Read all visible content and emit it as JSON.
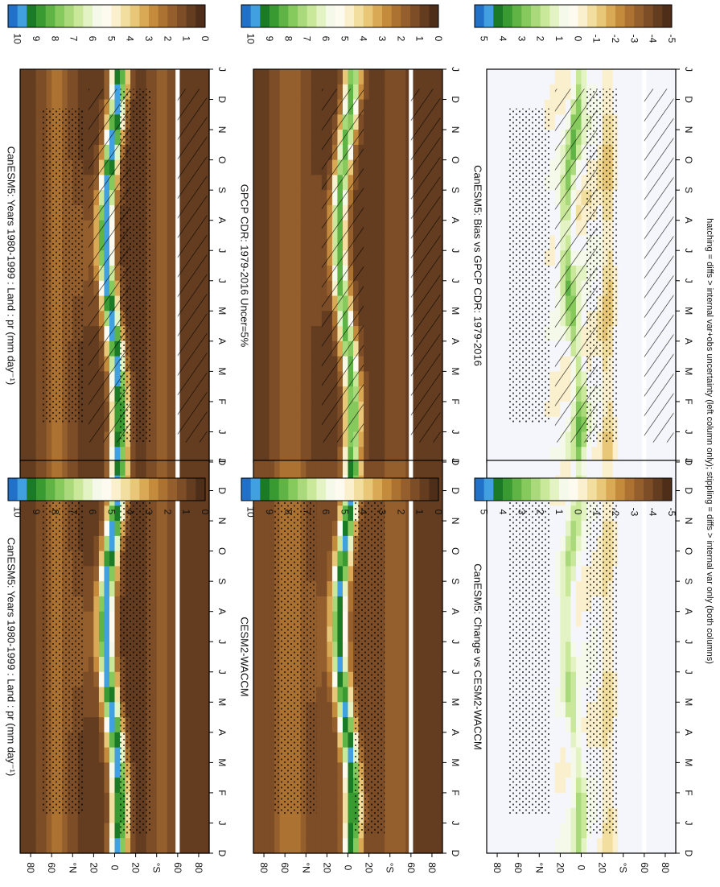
{
  "footnote": "hatching = diffs > internal var+obs uncertainty (left column only); stippling = diffs > internal var only (both columns)",
  "month_labels": [
    "D",
    "J",
    "F",
    "M",
    "A",
    "M",
    "J",
    "J",
    "A",
    "S",
    "O",
    "N",
    "D",
    "J"
  ],
  "lat_labels": [
    "80",
    "60",
    "°N",
    "20",
    "0",
    "20",
    "°S",
    "60",
    "80"
  ],
  "colorbars": {
    "abs": {
      "labels": [
        "10",
        "9",
        "8",
        "7",
        "6",
        "5",
        "4",
        "3",
        "2",
        "1",
        "0"
      ],
      "colors": [
        "#2171c8",
        "#41a0e0",
        "#1b7a25",
        "#3a9a32",
        "#60b445",
        "#86c95c",
        "#a9d97a",
        "#c9e89a",
        "#e4f3c3",
        "#f4f9ea",
        "#fdfaf0",
        "#fbf0cd",
        "#f2dfa0",
        "#e8c878",
        "#d9a955",
        "#c48b3d",
        "#ac7232",
        "#945f2c",
        "#7c4d26",
        "#643d20",
        "#4e2e18"
      ]
    },
    "diff": {
      "labels": [
        "5",
        "4",
        "3",
        "2",
        "1",
        "0",
        "-1",
        "-2",
        "-3",
        "-4",
        "-5"
      ],
      "colors": [
        "#2171c8",
        "#41a0e0",
        "#1b7a25",
        "#3a9a32",
        "#60b445",
        "#86c95c",
        "#a9d97a",
        "#c9e89a",
        "#e4f3c3",
        "#f4f9ea",
        "#fdfaf0",
        "#fbf0cd",
        "#f2dfa0",
        "#e8c878",
        "#d9a955",
        "#c48b3d",
        "#ac7232",
        "#945f2c",
        "#7c4d26",
        "#643d20",
        "#4e2e18"
      ]
    }
  },
  "chart_data": [
    {
      "type": "heatmap",
      "title": "CanESM5: Years 1980-1999 : Land : pr (mm day⁻¹)",
      "x": [
        "D",
        "J",
        "F",
        "M",
        "A",
        "M",
        "J",
        "J",
        "A",
        "S",
        "O",
        "N",
        "D",
        "J"
      ],
      "ylabels": [
        "80",
        "60",
        "°N",
        "20",
        "0",
        "20",
        "°S",
        "60",
        "80"
      ],
      "ylim": [
        -90,
        90
      ],
      "color_range": [
        0,
        10
      ],
      "colorbar": "abs",
      "hatching": true,
      "stippling": true
    },
    {
      "type": "heatmap",
      "title": "CanESM5: Years 1980-1999 : Land : pr (mm day⁻¹)",
      "x": [
        "D",
        "J",
        "F",
        "M",
        "A",
        "M",
        "J",
        "J",
        "A",
        "S",
        "O",
        "N",
        "D",
        "J"
      ],
      "ylabels": [
        "80",
        "60",
        "°N",
        "20",
        "0",
        "20",
        "°S",
        "60",
        "80"
      ],
      "ylim": [
        -90,
        90
      ],
      "color_range": [
        0,
        10
      ],
      "colorbar": "abs",
      "hatching": false,
      "stippling": true
    },
    {
      "type": "heatmap",
      "title": "GPCP CDR: 1979-2016 Uncer=5%",
      "x": [
        "D",
        "J",
        "F",
        "M",
        "A",
        "M",
        "J",
        "J",
        "A",
        "S",
        "O",
        "N",
        "D",
        "J"
      ],
      "ylabels": [
        "80",
        "60",
        "°N",
        "20",
        "0",
        "20",
        "°S",
        "60",
        "80"
      ],
      "ylim": [
        -90,
        90
      ],
      "color_range": [
        0,
        10
      ],
      "colorbar": "abs",
      "hatching": true,
      "stippling": false
    },
    {
      "type": "heatmap",
      "title": "CESM2-WACCM",
      "x": [
        "D",
        "J",
        "F",
        "M",
        "A",
        "M",
        "J",
        "J",
        "A",
        "S",
        "O",
        "N",
        "D",
        "J"
      ],
      "ylabels": [
        "80",
        "60",
        "°N",
        "20",
        "0",
        "20",
        "°S",
        "60",
        "80"
      ],
      "ylim": [
        -90,
        90
      ],
      "color_range": [
        0,
        10
      ],
      "colorbar": "abs",
      "hatching": false,
      "stippling": true
    },
    {
      "type": "heatmap",
      "title": "CanESM5: Bias vs GPCP CDR: 1979-2016",
      "x": [
        "D",
        "J",
        "F",
        "M",
        "A",
        "M",
        "J",
        "J",
        "A",
        "S",
        "O",
        "N",
        "D",
        "J"
      ],
      "ylabels": [
        "80",
        "60",
        "°N",
        "20",
        "0",
        "20",
        "°S",
        "60",
        "80"
      ],
      "ylim": [
        -90,
        90
      ],
      "color_range": [
        -5,
        5
      ],
      "colorbar": "diff",
      "hatching": true,
      "stippling": true
    },
    {
      "type": "heatmap",
      "title": "CanESM5: Change vs CESM2-WACCM",
      "x": [
        "D",
        "J",
        "F",
        "M",
        "A",
        "M",
        "J",
        "J",
        "A",
        "S",
        "O",
        "N",
        "D",
        "J"
      ],
      "ylabels": [
        "80",
        "60",
        "°N",
        "20",
        "0",
        "20",
        "°S",
        "60",
        "80"
      ],
      "ylim": [
        -90,
        90
      ],
      "color_range": [
        -5,
        5
      ],
      "colorbar": "diff",
      "hatching": false,
      "stippling": true
    }
  ]
}
